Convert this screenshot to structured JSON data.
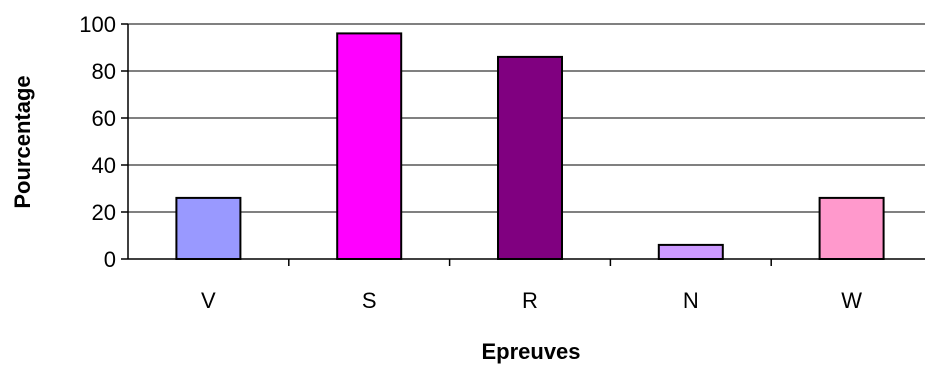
{
  "chart_data": {
    "type": "bar",
    "title": "",
    "xlabel": "Epreuves",
    "ylabel": "Pourcentage",
    "categories": [
      "V",
      "S",
      "R",
      "N",
      "W"
    ],
    "values": [
      26,
      96,
      86,
      6,
      26
    ],
    "colors": [
      "#9999ff",
      "#ff00ff",
      "#800080",
      "#cc99ff",
      "#ff99cc"
    ],
    "ylim": [
      0,
      100
    ],
    "yticks": [
      0,
      20,
      40,
      60,
      80,
      100
    ],
    "grid": true,
    "legend": "none"
  }
}
